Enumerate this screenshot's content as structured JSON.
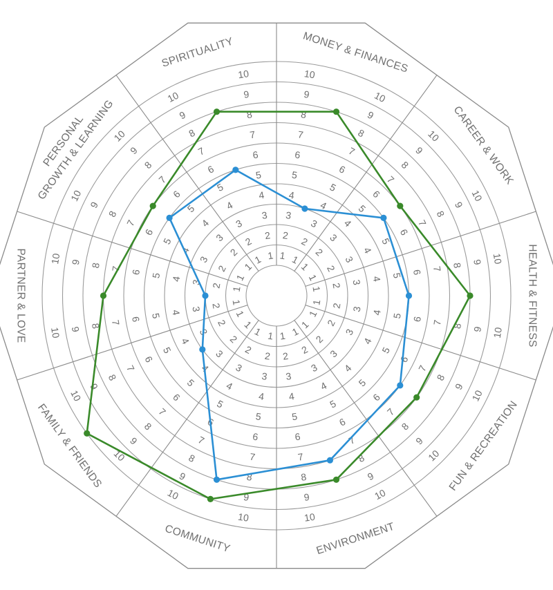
{
  "chart_data": {
    "type": "radar",
    "title": "",
    "scale_max": 10,
    "ring_labels": [
      "1",
      "2",
      "3",
      "4",
      "5",
      "6",
      "7",
      "8",
      "9",
      "10"
    ],
    "categories": [
      [
        "MONEY & FINANCES"
      ],
      [
        "CAREER & WORK"
      ],
      [
        "HEALTH & FITNESS"
      ],
      [
        "FUN & RECREATION"
      ],
      [
        "ENVIRONMENT"
      ],
      [
        "COMMUNITY"
      ],
      [
        "FAMILY & FRIENDS"
      ],
      [
        "PARTNER & LOVE"
      ],
      [
        "PERSONAL",
        "GROWTH & LEARNING"
      ],
      [
        "SPIRITUALITY"
      ]
    ],
    "series": [
      {
        "color": "#3a8a2a",
        "values": [
          8,
          6,
          8,
          7,
          8,
          9,
          10,
          7,
          6,
          8
        ]
      },
      {
        "color": "#2b8fd4",
        "values": [
          3,
          5,
          5,
          6,
          7,
          8,
          3,
          2,
          5,
          5
        ]
      }
    ],
    "grid": true,
    "legend": "none"
  }
}
